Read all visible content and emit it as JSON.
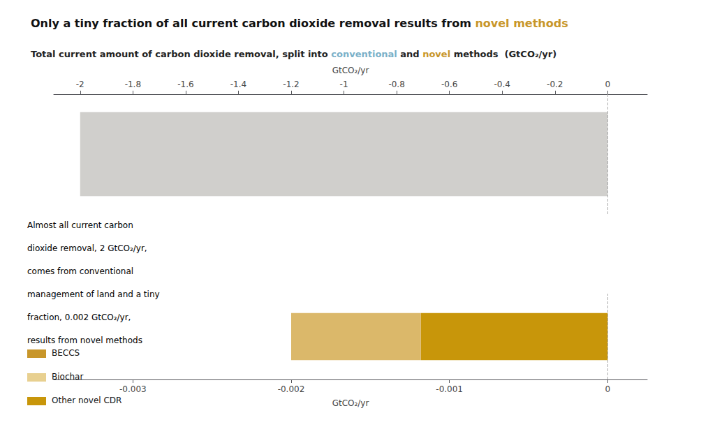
{
  "title_parts": [
    {
      "text": "Only a tiny fraction of all current carbon dioxide removal results from ",
      "color": "#111111"
    },
    {
      "text": "novel methods",
      "color": "#c8962a"
    }
  ],
  "subtitle_parts": [
    {
      "text": "Total current amount of carbon dioxide removal, split into ",
      "color": "#222222"
    },
    {
      "text": "conventional",
      "color": "#7ab0c8"
    },
    {
      "text": " and ",
      "color": "#222222"
    },
    {
      "text": "novel",
      "color": "#c8962a"
    },
    {
      "text": " methods  (GtCO₂/yr)",
      "color": "#222222"
    }
  ],
  "annotations": [
    {
      "text": "Almost all current carbon"
    },
    {
      "text": "dioxide removal, 2 GtCO₂/yr,"
    },
    {
      "text": "comes from ",
      "colored_text": "conventional",
      "colored_color": "#7ab0c8"
    },
    {
      "text": "management of land and a tiny"
    },
    {
      "text": "fraction, 0.002 GtCO₂/yr,"
    },
    {
      "text": "results from ",
      "colored_text": "novel methods",
      "colored_color": "#c8962a"
    }
  ],
  "legend_items": [
    {
      "label": "BECCS",
      "color": "#c8962a"
    },
    {
      "label": "Biochar",
      "color": "#e8d090"
    },
    {
      "label": "Other novel CDR",
      "color": "#c8960a"
    }
  ],
  "chart_data": [
    {
      "type": "bar",
      "orientation": "horizontal",
      "categories": [
        null
      ],
      "series": [
        {
          "color": "#d0cfcc",
          "values": [
            -2.0
          ]
        }
      ],
      "xlabel": "GtCO₂/yr",
      "xlim": [
        -2.1,
        0.15
      ],
      "xticks": [
        -2,
        -1.8,
        -1.6,
        -1.4,
        -1.2,
        -1,
        -0.8,
        -0.6,
        -0.4,
        -0.2,
        0
      ],
      "reference_lines": [
        0
      ],
      "grid": false
    },
    {
      "type": "bar",
      "orientation": "horizontal",
      "stacked": true,
      "categories": [
        null
      ],
      "series": [
        {
          "color": "#dbb86a",
          "values": [
            -0.00082
          ]
        },
        {
          "color": "#c8960a",
          "values": [
            -0.00118
          ]
        }
      ],
      "xlabel": "GtCO₂/yr",
      "xlim": [
        -0.0035,
        0.00025
      ],
      "xticks": [
        -0.003,
        -0.002,
        -0.001,
        0
      ],
      "reference_lines": [
        0
      ],
      "grid": false
    }
  ]
}
